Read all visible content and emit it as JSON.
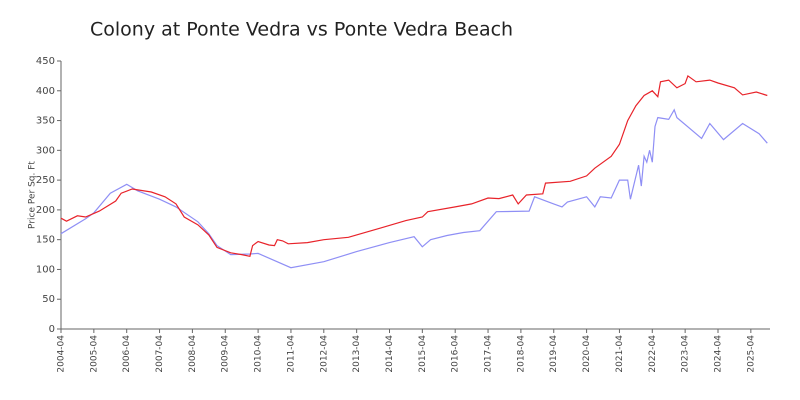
{
  "chart_data": {
    "type": "line",
    "title": "Colony at Ponte Vedra vs Ponte Vedra Beach",
    "y_label": "Price Per Sq. Ft",
    "xlim": [
      "2004-04",
      "2025-11"
    ],
    "xticks": [
      "2004-04",
      "2005-04",
      "2006-04",
      "2007-04",
      "2008-04",
      "2009-04",
      "2010-04",
      "2011-04",
      "2012-04",
      "2013-04",
      "2014-04",
      "2015-04",
      "2016-04",
      "2017-04",
      "2018-04",
      "2019-04",
      "2020-04",
      "2021-04",
      "2022-04",
      "2023-04",
      "2024-04",
      "2025-04"
    ],
    "ylim": [
      0,
      450
    ],
    "yticks": [
      0,
      50,
      100,
      150,
      200,
      250,
      300,
      350,
      400,
      450
    ],
    "grid": false,
    "series": [
      {
        "color": "#e8232a",
        "x": [
          "2004-04",
          "2004-06",
          "2004-10",
          "2005-01",
          "2005-06",
          "2005-12",
          "2006-02",
          "2006-06",
          "2007-01",
          "2007-06",
          "2007-10",
          "2008-01",
          "2008-06",
          "2008-10",
          "2009-01",
          "2009-06",
          "2009-10",
          "2010-01",
          "2010-02",
          "2010-04",
          "2010-08",
          "2010-10",
          "2010-11",
          "2011-01",
          "2011-03",
          "2011-10",
          "2012-04",
          "2013-01",
          "2013-04",
          "2014-01",
          "2014-10",
          "2015-04",
          "2015-06",
          "2016-04",
          "2016-10",
          "2017-04",
          "2017-08",
          "2018-01",
          "2018-03",
          "2018-06",
          "2018-12",
          "2019-01",
          "2019-10",
          "2020-04",
          "2020-07",
          "2021-01",
          "2021-04",
          "2021-07",
          "2021-10",
          "2022-01",
          "2022-04",
          "2022-06",
          "2022-07",
          "2022-10",
          "2023-01",
          "2023-04",
          "2023-05",
          "2023-08",
          "2024-01",
          "2024-04",
          "2024-10",
          "2025-01",
          "2025-06",
          "2025-10"
        ],
        "values": [
          186,
          181,
          190,
          188,
          198,
          215,
          228,
          235,
          230,
          222,
          210,
          188,
          175,
          158,
          137,
          128,
          125,
          122,
          140,
          147,
          141,
          140,
          150,
          148,
          143,
          145,
          150,
          154,
          158,
          170,
          182,
          188,
          197,
          205,
          210,
          220,
          219,
          225,
          210,
          225,
          227,
          245,
          248,
          257,
          270,
          290,
          310,
          350,
          375,
          392,
          400,
          390,
          415,
          418,
          405,
          412,
          425,
          415,
          418,
          413,
          405,
          393,
          398,
          392
        ]
      },
      {
        "color": "#8f8ff5",
        "x": [
          "2004-04",
          "2005-01",
          "2005-04",
          "2005-10",
          "2006-04",
          "2006-08",
          "2007-04",
          "2007-10",
          "2008-06",
          "2008-10",
          "2009-01",
          "2009-06",
          "2010-01",
          "2010-04",
          "2011-04",
          "2012-04",
          "2013-04",
          "2014-04",
          "2015-01",
          "2015-04",
          "2015-07",
          "2016-01",
          "2016-07",
          "2017-01",
          "2017-07",
          "2018-07",
          "2018-09",
          "2019-04",
          "2019-07",
          "2019-09",
          "2020-04",
          "2020-07",
          "2020-09",
          "2021-01",
          "2021-04",
          "2021-07",
          "2021-08",
          "2021-11",
          "2021-12",
          "2022-01",
          "2022-02",
          "2022-03",
          "2022-04",
          "2022-05",
          "2022-06",
          "2022-10",
          "2022-12",
          "2023-01",
          "2023-10",
          "2024-01",
          "2024-06",
          "2025-01",
          "2025-07",
          "2025-10"
        ],
        "values": [
          160,
          185,
          195,
          228,
          243,
          232,
          218,
          205,
          180,
          160,
          140,
          125,
          126,
          127,
          103,
          113,
          130,
          145,
          155,
          138,
          150,
          157,
          162,
          165,
          197,
          198,
          222,
          210,
          205,
          213,
          222,
          205,
          222,
          220,
          250,
          250,
          218,
          275,
          240,
          290,
          280,
          300,
          280,
          340,
          355,
          352,
          368,
          355,
          320,
          345,
          318,
          345,
          328,
          312
        ]
      }
    ]
  }
}
